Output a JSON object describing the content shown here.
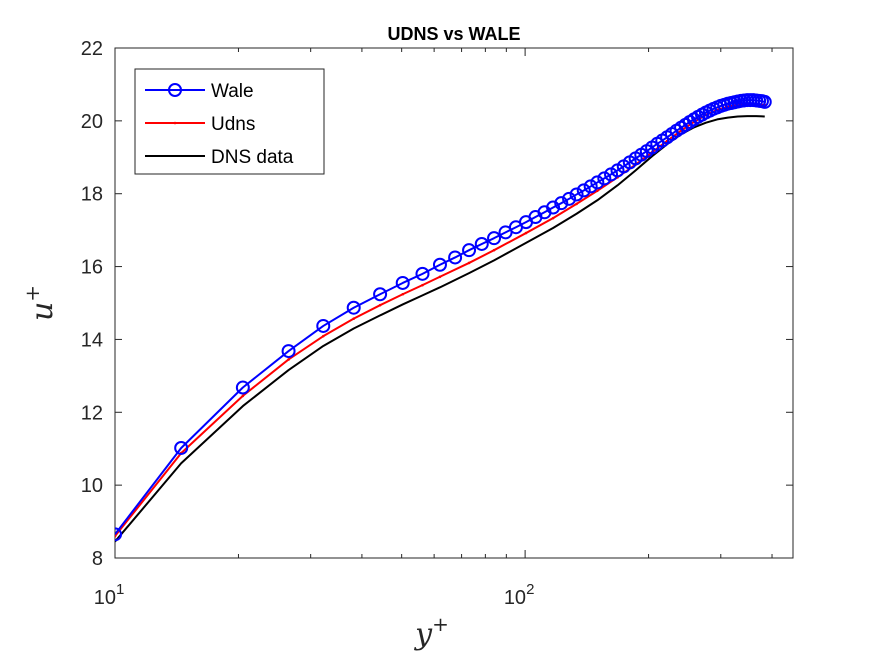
{
  "chart_data": {
    "type": "line",
    "title": "UDNS vs WALE",
    "xlabel": "y",
    "xlabel_sup": "+",
    "ylabel": "u",
    "ylabel_sup": "+",
    "xscale": "log",
    "xlim": [
      10,
      450
    ],
    "ylim": [
      8,
      22
    ],
    "yticks": [
      "8",
      "10",
      "12",
      "14",
      "16",
      "18",
      "20",
      "22"
    ],
    "xticks": [
      {
        "base": "10",
        "exp": "1",
        "value": 10
      },
      {
        "base": "10",
        "exp": "2",
        "value": 100
      }
    ],
    "grid": false,
    "legend_position": "top-left",
    "series": [
      {
        "name": "Wale",
        "color": "#0000ff",
        "marker": "circle",
        "x": [
          10,
          14.5,
          20.5,
          26.5,
          32.2,
          38.2,
          44.3,
          50.3,
          56.2,
          62.0,
          67.5,
          73.0,
          78.4,
          84.0,
          89.6,
          95.0,
          100.5,
          106,
          111.5,
          117,
          122.5,
          128,
          133.5,
          139,
          144.5,
          150,
          156,
          162,
          168,
          174,
          180,
          186,
          192,
          198,
          204,
          210,
          216,
          222,
          228,
          234,
          240,
          246,
          252,
          258,
          264,
          270,
          276,
          282,
          288,
          294,
          300,
          306,
          312,
          318,
          324,
          330,
          336,
          342,
          348,
          354,
          360,
          366,
          372,
          378,
          384
        ],
        "y": [
          8.65,
          11.02,
          12.68,
          13.68,
          14.37,
          14.87,
          15.24,
          15.55,
          15.8,
          16.05,
          16.25,
          16.45,
          16.62,
          16.78,
          16.94,
          17.08,
          17.22,
          17.36,
          17.49,
          17.62,
          17.74,
          17.86,
          17.98,
          18.09,
          18.2,
          18.31,
          18.42,
          18.53,
          18.64,
          18.75,
          18.86,
          18.97,
          19.07,
          19.17,
          19.27,
          19.37,
          19.46,
          19.55,
          19.64,
          19.73,
          19.81,
          19.89,
          19.97,
          20.04,
          20.11,
          20.17,
          20.23,
          20.28,
          20.33,
          20.37,
          20.41,
          20.44,
          20.47,
          20.49,
          20.51,
          20.53,
          20.55,
          20.56,
          20.57,
          20.57,
          20.57,
          20.56,
          20.55,
          20.54,
          20.52
        ]
      },
      {
        "name": "Udns",
        "color": "#ff0000",
        "marker": "dot",
        "x": [
          10,
          14.5,
          20.5,
          26.5,
          32.2,
          38.2,
          44.3,
          50.3,
          56.2,
          62,
          73,
          84,
          100.5,
          117,
          133.5,
          150,
          168,
          186,
          204,
          222,
          240,
          258,
          276,
          294,
          312,
          330,
          348,
          366,
          384
        ],
        "y": [
          8.6,
          10.88,
          12.45,
          13.45,
          14.09,
          14.57,
          14.94,
          15.24,
          15.49,
          15.72,
          16.1,
          16.45,
          16.92,
          17.33,
          17.72,
          18.08,
          18.45,
          18.8,
          19.14,
          19.45,
          19.73,
          19.97,
          20.16,
          20.3,
          20.39,
          20.44,
          20.46,
          20.46,
          20.44
        ]
      },
      {
        "name": "DNS data",
        "color": "#000000",
        "marker": "none",
        "x": [
          10,
          14.5,
          20.5,
          26.5,
          32.2,
          38.2,
          44.3,
          50.3,
          56.2,
          62,
          73,
          84,
          100.5,
          117,
          133.5,
          150,
          168,
          186,
          204,
          222,
          240,
          258,
          276,
          294,
          312,
          330,
          348,
          366,
          384
        ],
        "y": [
          8.45,
          10.6,
          12.17,
          13.16,
          13.82,
          14.3,
          14.66,
          14.96,
          15.21,
          15.43,
          15.82,
          16.17,
          16.65,
          17.06,
          17.45,
          17.82,
          18.23,
          18.64,
          19.03,
          19.36,
          19.63,
          19.82,
          19.95,
          20.04,
          20.09,
          20.12,
          20.13,
          20.13,
          20.12
        ]
      }
    ]
  }
}
